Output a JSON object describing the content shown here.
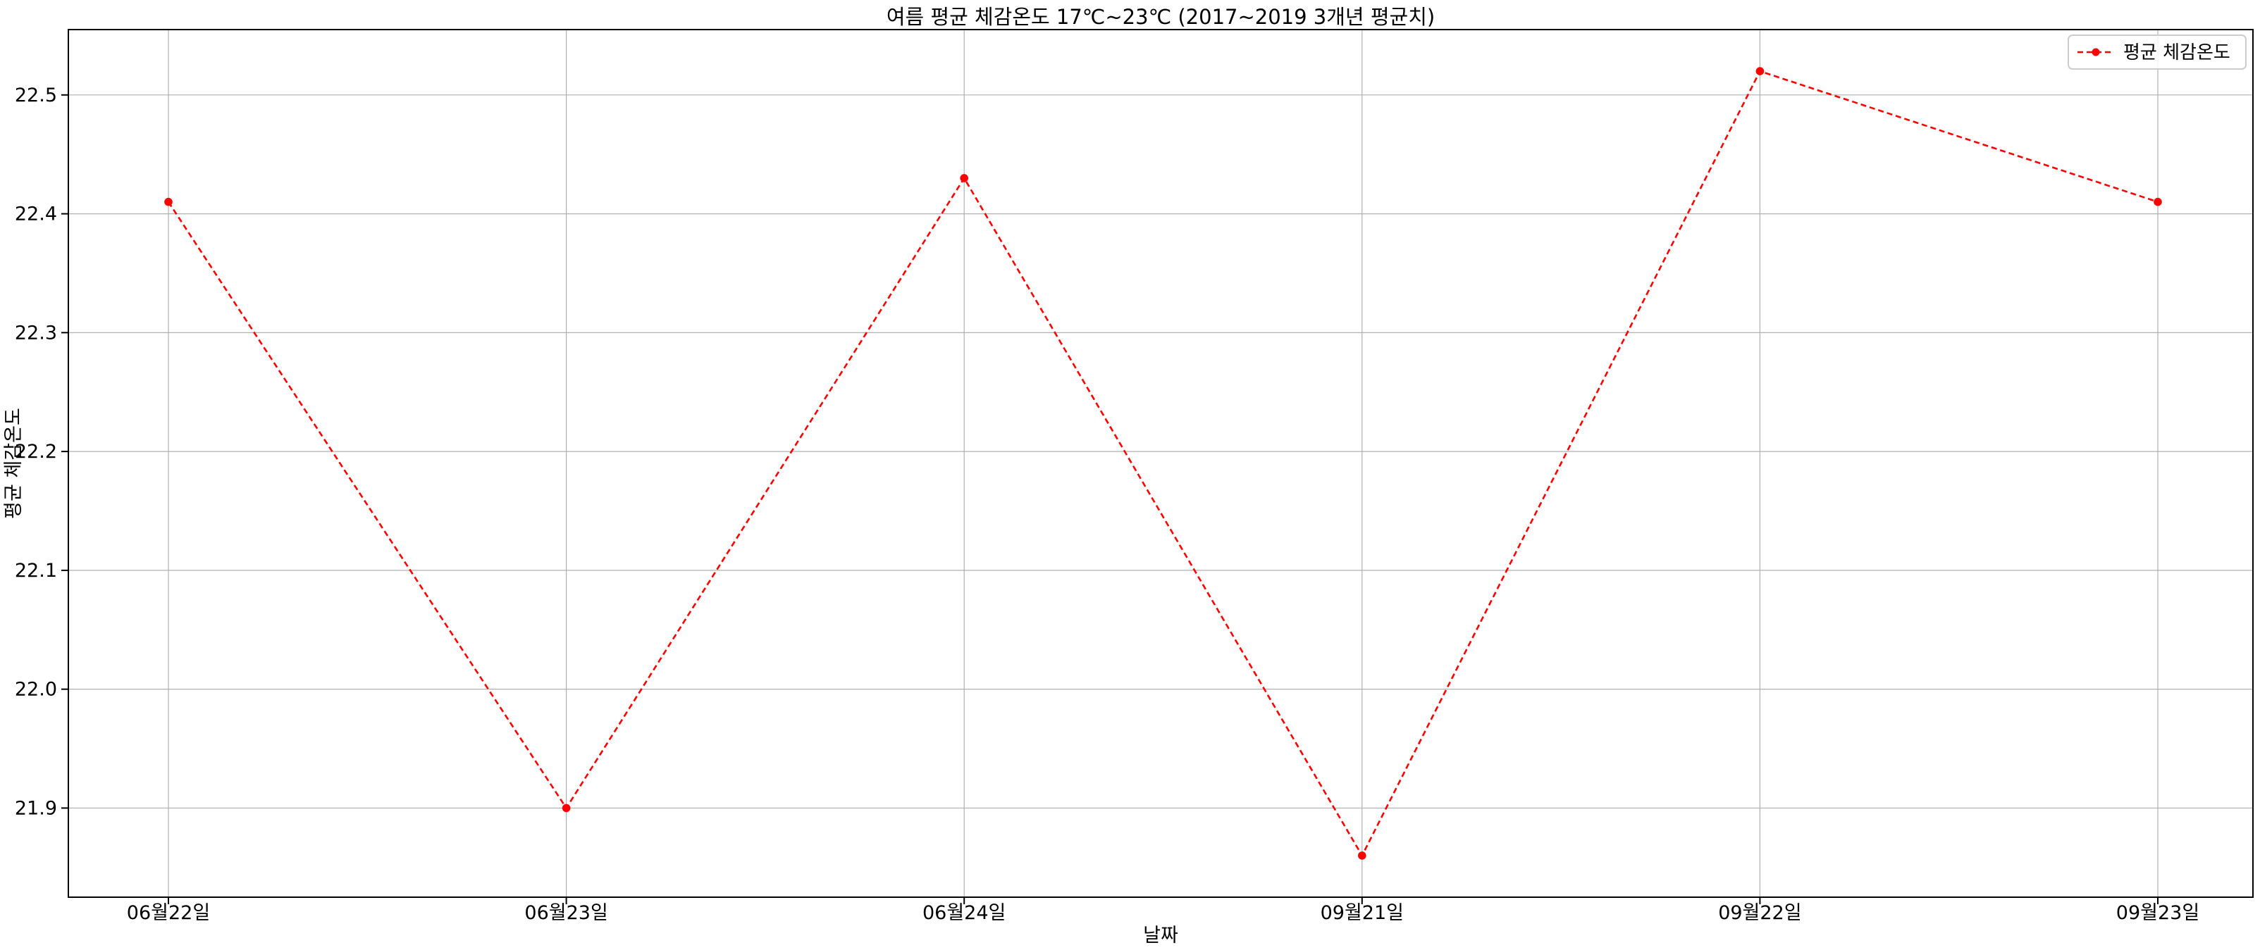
{
  "chart_data": {
    "type": "line",
    "title": "여름 평균 체감온도 17℃~23℃ (2017~2019 3개년 평균치)",
    "xlabel": "날짜",
    "ylabel": "평균 체감온도",
    "categories": [
      "06월22일",
      "06월23일",
      "06월24일",
      "09월21일",
      "09월22일",
      "09월23일"
    ],
    "series": [
      {
        "name": "평균 체감온도",
        "values": [
          22.41,
          21.9,
          22.43,
          21.86,
          22.52,
          22.41
        ],
        "color": "#ff0000",
        "line_style": "dashed",
        "marker": "circle"
      }
    ],
    "ylim": [
      21.825,
      22.555
    ],
    "yticks": [
      21.9,
      22.0,
      22.1,
      22.2,
      22.3,
      22.4,
      22.5
    ],
    "ytick_labels": [
      "21.9",
      "22.0",
      "22.1",
      "22.2",
      "22.3",
      "22.4",
      "22.5"
    ],
    "grid": true,
    "legend_position": "top-right",
    "colors": {
      "grid": "#b0b0b0",
      "axis": "#000000",
      "line": "#ff0000"
    }
  }
}
